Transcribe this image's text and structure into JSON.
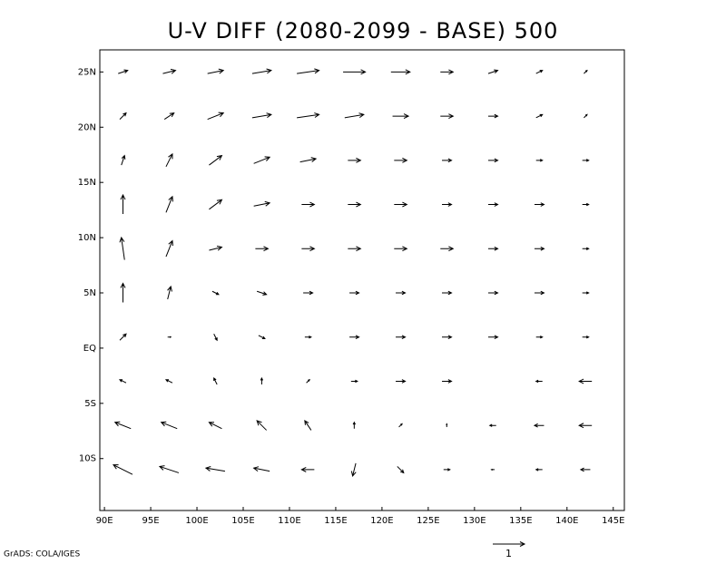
{
  "chart_data": {
    "type": "vector",
    "title": "U-V DIFF (2080-2099 - BASE) 500",
    "credit": "GrADS: COLA/IGES",
    "reference_vector": 1,
    "xlim": [
      89.5,
      146.2
    ],
    "ylim": [
      -14.7,
      27
    ],
    "xticks": [
      {
        "value": 90,
        "label": "90E"
      },
      {
        "value": 95,
        "label": "95E"
      },
      {
        "value": 100,
        "label": "100E"
      },
      {
        "value": 105,
        "label": "105E"
      },
      {
        "value": 110,
        "label": "110E"
      },
      {
        "value": 115,
        "label": "115E"
      },
      {
        "value": 120,
        "label": "120E"
      },
      {
        "value": 125,
        "label": "125E"
      },
      {
        "value": 130,
        "label": "130E"
      },
      {
        "value": 135,
        "label": "135E"
      },
      {
        "value": 140,
        "label": "140E"
      },
      {
        "value": 145,
        "label": "145E"
      }
    ],
    "yticks": [
      {
        "value": -10,
        "label": "10S"
      },
      {
        "value": -5,
        "label": "5S"
      },
      {
        "value": 0,
        "label": "EQ"
      },
      {
        "value": 5,
        "label": "5N"
      },
      {
        "value": 10,
        "label": "10N"
      },
      {
        "value": 15,
        "label": "15N"
      },
      {
        "value": 20,
        "label": "20N"
      },
      {
        "value": 25,
        "label": "25N"
      }
    ],
    "lon": [
      92,
      97,
      102,
      107,
      112,
      117,
      122,
      127,
      132,
      137,
      142
    ],
    "lat": [
      25,
      21,
      17,
      13,
      9,
      5,
      1,
      -3,
      -7,
      -11
    ],
    "u": [
      [
        0.3,
        0.4,
        0.5,
        0.6,
        0.7,
        0.7,
        0.6,
        0.4,
        0.3,
        0.2,
        0.1
      ],
      [
        0.2,
        0.3,
        0.5,
        0.6,
        0.7,
        0.6,
        0.5,
        0.4,
        0.3,
        0.2,
        0.1
      ],
      [
        0.1,
        0.2,
        0.4,
        0.5,
        0.5,
        0.4,
        0.4,
        0.3,
        0.3,
        0.2,
        0.2
      ],
      [
        0,
        0.2,
        0.4,
        0.5,
        0.4,
        0.4,
        0.4,
        0.3,
        0.3,
        0.3,
        0.2
      ],
      [
        -0.1,
        0.2,
        0.4,
        0.4,
        0.4,
        0.4,
        0.4,
        0.4,
        0.3,
        0.3,
        0.2
      ],
      [
        0,
        0.1,
        0.2,
        0.3,
        0.3,
        0.3,
        0.3,
        0.3,
        0.3,
        0.3,
        0.2
      ],
      [
        0.2,
        0.1,
        0.1,
        0.2,
        0.2,
        0.3,
        0.3,
        0.3,
        0.3,
        0.2,
        0.2
      ],
      [
        -0.2,
        -0.2,
        -0.1,
        0,
        0.1,
        0.2,
        0.3,
        0.3,
        0,
        -0.2,
        -0.4
      ],
      [
        -0.5,
        -0.5,
        -0.4,
        -0.3,
        -0.2,
        0,
        0.1,
        0,
        -0.2,
        -0.3,
        -0.4
      ],
      [
        -0.6,
        -0.6,
        -0.6,
        -0.5,
        -0.4,
        -0.1,
        0.2,
        0.2,
        -0.1,
        -0.2,
        -0.3
      ]
    ],
    "v": [
      [
        0.1,
        0.1,
        0.1,
        0.1,
        0.1,
        0,
        0,
        0,
        0.1,
        0.1,
        0.1
      ],
      [
        0.2,
        0.2,
        0.2,
        0.1,
        0.1,
        0.1,
        0,
        0,
        0,
        0.1,
        0.1
      ],
      [
        0.3,
        0.4,
        0.3,
        0.2,
        0.1,
        0,
        0,
        0,
        0,
        0,
        0
      ],
      [
        0.6,
        0.5,
        0.3,
        0.1,
        0,
        0,
        0,
        0,
        0,
        0,
        0
      ],
      [
        0.7,
        0.5,
        0.1,
        0,
        0,
        0,
        0,
        0,
        0,
        0,
        0
      ],
      [
        0.6,
        0.4,
        -0.1,
        -0.1,
        0,
        0,
        0,
        0,
        0,
        0,
        0
      ],
      [
        0.2,
        0,
        -0.2,
        -0.1,
        0,
        0,
        0,
        0,
        0,
        0,
        0
      ],
      [
        0.1,
        0.1,
        0.2,
        0.2,
        0.1,
        0,
        0,
        0,
        0,
        0,
        0
      ],
      [
        0.2,
        0.2,
        0.2,
        0.3,
        0.3,
        0.2,
        0.1,
        0.1,
        0,
        0,
        0
      ],
      [
        0.3,
        0.2,
        0.1,
        0.1,
        0,
        -0.4,
        -0.2,
        0,
        0,
        0,
        0
      ]
    ]
  }
}
